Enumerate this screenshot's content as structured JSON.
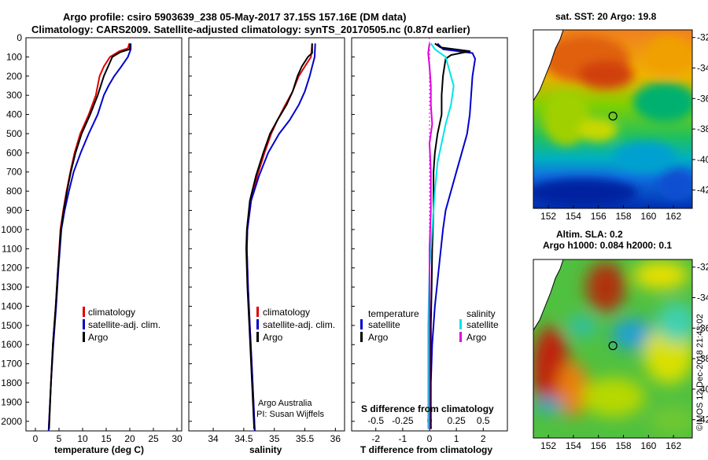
{
  "header": {
    "line1": "Argo profile: csiro 5903639_238 05-May-2017 37.15S 157.16E (DM data)",
    "line2": "Climatology: CARS2009. Satellite-adjusted climatology: synTS_20170505.nc (0.87d earlier)"
  },
  "colors": {
    "climatology": "#e00000",
    "satellite": "#0000cc",
    "argo": "#000000",
    "sat_t": "#0000cc",
    "sat_s": "#00e5e5",
    "argo_s": "#e000e0"
  },
  "depth_axis": {
    "ticks": [
      "0",
      "100",
      "200",
      "300",
      "400",
      "500",
      "600",
      "700",
      "800",
      "900",
      "1000",
      "1100",
      "1200",
      "1300",
      "1400",
      "1500",
      "1600",
      "1700",
      "1800",
      "1900",
      "2000"
    ],
    "ylim": [
      0,
      2050
    ]
  },
  "chart_data": [
    {
      "type": "line",
      "xlabel": "temperature (deg C)",
      "xlim": [
        -2,
        31
      ],
      "ticks": [
        "0",
        "5",
        "10",
        "15",
        "20",
        "25",
        "30"
      ],
      "tick_values": [
        0,
        5,
        10,
        15,
        20,
        25,
        30
      ],
      "legend": [
        "climatology",
        "satellite-adj. clim.",
        "Argo"
      ],
      "series": [
        {
          "name": "climatology",
          "color": "#e00000",
          "points": [
            [
              19.9,
              30
            ],
            [
              19.6,
              55
            ],
            [
              17.8,
              70
            ],
            [
              15.8,
              100
            ],
            [
              14.5,
              150
            ],
            [
              13.6,
              200
            ],
            [
              12.8,
              300
            ],
            [
              11.3,
              400
            ],
            [
              9.5,
              500
            ],
            [
              8.3,
              600
            ],
            [
              7.4,
              700
            ],
            [
              6.6,
              800
            ],
            [
              5.9,
              900
            ],
            [
              5.3,
              1000
            ],
            [
              4.8,
              1200
            ],
            [
              4.3,
              1400
            ],
            [
              3.7,
              1600
            ],
            [
              3.3,
              1800
            ],
            [
              2.8,
              2050
            ]
          ]
        },
        {
          "name": "satellite-adj. clim.",
          "color": "#0000cc",
          "points": [
            [
              20.2,
              30
            ],
            [
              20.2,
              60
            ],
            [
              19.6,
              100
            ],
            [
              18.2,
              150
            ],
            [
              16.7,
              200
            ],
            [
              15.5,
              250
            ],
            [
              14.5,
              300
            ],
            [
              13.2,
              400
            ],
            [
              11.3,
              500
            ],
            [
              9.6,
              600
            ],
            [
              8.1,
              700
            ],
            [
              7.1,
              800
            ],
            [
              6.2,
              900
            ],
            [
              5.5,
              1000
            ],
            [
              4.9,
              1200
            ],
            [
              4.4,
              1400
            ],
            [
              3.8,
              1600
            ],
            [
              3.3,
              1800
            ],
            [
              2.8,
              2050
            ]
          ]
        },
        {
          "name": "Argo",
          "color": "#000000",
          "points": [
            [
              20.0,
              30
            ],
            [
              20.0,
              60
            ],
            [
              18.0,
              75
            ],
            [
              16.3,
              100
            ],
            [
              15.4,
              150
            ],
            [
              14.5,
              200
            ],
            [
              13.2,
              300
            ],
            [
              11.6,
              400
            ],
            [
              9.8,
              500
            ],
            [
              8.5,
              600
            ],
            [
              7.5,
              700
            ],
            [
              6.7,
              800
            ],
            [
              6.0,
              900
            ],
            [
              5.4,
              1000
            ],
            [
              4.8,
              1200
            ],
            [
              4.3,
              1400
            ],
            [
              3.7,
              1600
            ],
            [
              3.3,
              1800
            ],
            [
              2.9,
              2040
            ]
          ]
        }
      ]
    },
    {
      "type": "line",
      "xlabel": "salinity",
      "xlim": [
        33.6,
        36.15
      ],
      "ticks": [
        "34",
        "34.5",
        "35",
        "35.5",
        "36"
      ],
      "tick_values": [
        34,
        34.5,
        35,
        35.5,
        36
      ],
      "legend": [
        "climatology",
        "satellite-adj. clim.",
        "Argo"
      ],
      "annotation_lines": [
        "Argo Australia",
        "PI: Susan Wijffels"
      ],
      "series": [
        {
          "name": "climatology",
          "color": "#e00000",
          "points": [
            [
              35.62,
              30
            ],
            [
              35.6,
              100
            ],
            [
              35.5,
              150
            ],
            [
              35.4,
              200
            ],
            [
              35.3,
              280
            ],
            [
              35.18,
              350
            ],
            [
              35.05,
              430
            ],
            [
              34.95,
              500
            ],
            [
              34.84,
              600
            ],
            [
              34.72,
              720
            ],
            [
              34.62,
              850
            ],
            [
              34.56,
              1000
            ],
            [
              34.55,
              1100
            ],
            [
              34.57,
              1300
            ],
            [
              34.6,
              1500
            ],
            [
              34.63,
              1700
            ],
            [
              34.66,
              1900
            ],
            [
              34.68,
              2050
            ]
          ]
        },
        {
          "name": "satellite-adj. clim.",
          "color": "#0000cc",
          "points": [
            [
              35.67,
              30
            ],
            [
              35.66,
              100
            ],
            [
              35.62,
              150
            ],
            [
              35.58,
              200
            ],
            [
              35.5,
              280
            ],
            [
              35.4,
              350
            ],
            [
              35.25,
              430
            ],
            [
              35.08,
              500
            ],
            [
              34.9,
              600
            ],
            [
              34.75,
              720
            ],
            [
              34.62,
              850
            ],
            [
              34.56,
              1000
            ],
            [
              34.55,
              1100
            ],
            [
              34.57,
              1300
            ],
            [
              34.6,
              1500
            ],
            [
              34.63,
              1700
            ],
            [
              34.66,
              1900
            ],
            [
              34.68,
              2050
            ]
          ]
        },
        {
          "name": "Argo",
          "color": "#000000",
          "points": [
            [
              35.62,
              30
            ],
            [
              35.62,
              80
            ],
            [
              35.55,
              100
            ],
            [
              35.45,
              150
            ],
            [
              35.38,
              200
            ],
            [
              35.3,
              280
            ],
            [
              35.2,
              350
            ],
            [
              35.05,
              430
            ],
            [
              34.93,
              500
            ],
            [
              34.82,
              600
            ],
            [
              34.7,
              720
            ],
            [
              34.6,
              850
            ],
            [
              34.55,
              1000
            ],
            [
              34.54,
              1100
            ],
            [
              34.56,
              1300
            ],
            [
              34.59,
              1500
            ],
            [
              34.62,
              1700
            ],
            [
              34.65,
              1900
            ],
            [
              34.67,
              2040
            ]
          ]
        }
      ]
    },
    {
      "type": "line",
      "xlabel": "T difference from climatology",
      "xlabel_top": "S difference from climatology",
      "xlim": [
        -2.9,
        2.9
      ],
      "ticks": [
        "-2",
        "-1",
        "0",
        "1",
        "2"
      ],
      "tick_values": [
        -2,
        -1,
        0,
        1,
        2
      ],
      "top_ticks": [
        "-0.5",
        "-0.25",
        "0",
        "0.25",
        "0.5"
      ],
      "top_tick_values": [
        -2,
        -1,
        0,
        1,
        2
      ],
      "legend_left_title": "temperature",
      "legend_right_title": "salinity",
      "legend_left": [
        "satellite",
        "Argo"
      ],
      "legend_right": [
        "satellite",
        "Argo"
      ],
      "series": [
        {
          "name": "T satellite",
          "color": "#0000cc",
          "points": [
            [
              0.3,
              30
            ],
            [
              0.5,
              60
            ],
            [
              1.6,
              80
            ],
            [
              1.7,
              110
            ],
            [
              1.6,
              200
            ],
            [
              1.55,
              300
            ],
            [
              1.5,
              400
            ],
            [
              1.4,
              500
            ],
            [
              1.2,
              600
            ],
            [
              1.0,
              700
            ],
            [
              0.8,
              800
            ],
            [
              0.6,
              900
            ],
            [
              0.5,
              1000
            ],
            [
              0.35,
              1200
            ],
            [
              0.2,
              1400
            ],
            [
              0.1,
              1600
            ],
            [
              0.05,
              1800
            ],
            [
              0.05,
              2040
            ]
          ]
        },
        {
          "name": "T Argo",
          "color": "#000000",
          "points": [
            [
              0.2,
              30
            ],
            [
              0.4,
              50
            ],
            [
              1.5,
              70
            ],
            [
              0.8,
              90
            ],
            [
              0.6,
              110
            ],
            [
              0.5,
              200
            ],
            [
              0.45,
              300
            ],
            [
              0.45,
              400
            ],
            [
              0.3,
              500
            ],
            [
              0.2,
              600
            ],
            [
              0.15,
              700
            ],
            [
              0.15,
              900
            ],
            [
              0.1,
              1100
            ],
            [
              0.08,
              1300
            ],
            [
              0.05,
              1500
            ],
            [
              0.05,
              1700
            ],
            [
              0.03,
              1900
            ],
            [
              0.05,
              2040
            ]
          ]
        },
        {
          "name": "S satellite",
          "color": "#00e5e5",
          "points": [
            [
              0.05,
              30
            ],
            [
              0.2,
              60
            ],
            [
              0.6,
              100
            ],
            [
              0.7,
              150
            ],
            [
              0.9,
              250
            ],
            [
              0.8,
              350
            ],
            [
              0.6,
              450
            ],
            [
              0.45,
              550
            ],
            [
              0.3,
              650
            ],
            [
              0.2,
              800
            ],
            [
              0.1,
              1000
            ],
            [
              0.0,
              1200
            ],
            [
              -0.05,
              1500
            ],
            [
              -0.05,
              1800
            ],
            [
              -0.05,
              2040
            ]
          ]
        },
        {
          "name": "S Argo",
          "color": "#e000e0",
          "points": [
            [
              0.0,
              30
            ],
            [
              -0.05,
              80
            ],
            [
              0.0,
              150
            ],
            [
              0.05,
              250
            ],
            [
              0.05,
              350
            ],
            [
              0.1,
              450
            ],
            [
              0.0,
              550
            ],
            [
              0.05,
              700
            ],
            [
              0.05,
              900
            ],
            [
              0.0,
              1100
            ],
            [
              0.0,
              1300
            ],
            [
              0.0,
              1500
            ],
            [
              0.0,
              1700
            ],
            [
              0.0,
              1900
            ],
            [
              0.0,
              2040
            ]
          ]
        }
      ]
    },
    {
      "type": "heatmap",
      "title": "sat. SST: 20 Argo: 19.8",
      "xticks": [
        "152",
        "154",
        "156",
        "158",
        "160",
        "162"
      ],
      "xtick_values": [
        152,
        154,
        156,
        158,
        160,
        162
      ],
      "yticks": [
        "-32",
        "-34",
        "-36",
        "-38",
        "-40",
        "-42"
      ],
      "ytick_values": [
        -32,
        -34,
        -36,
        -38,
        -40,
        -42
      ],
      "xlim": [
        150.8,
        163.5
      ],
      "ylim": [
        -43.2,
        -31.5
      ],
      "marker": [
        157.16,
        -37.15
      ]
    },
    {
      "type": "heatmap",
      "title": "Altim. SLA: 0.2",
      "subtitle": "Argo h1000: 0.084 h2000: 0.1",
      "xticks": [
        "152",
        "154",
        "156",
        "158",
        "160",
        "162"
      ],
      "xtick_values": [
        152,
        154,
        156,
        158,
        160,
        162
      ],
      "yticks": [
        "-32",
        "-34",
        "-36",
        "-38",
        "-40",
        "-42"
      ],
      "ytick_values": [
        -32,
        -34,
        -36,
        -38,
        -40,
        -42
      ],
      "xlim": [
        150.8,
        163.5
      ],
      "ylim": [
        -43.2,
        -31.5
      ],
      "marker": [
        157.16,
        -37.15
      ]
    }
  ],
  "footer": {
    "credit": "©IMOS 12-Dec-2018 21:43:02"
  }
}
